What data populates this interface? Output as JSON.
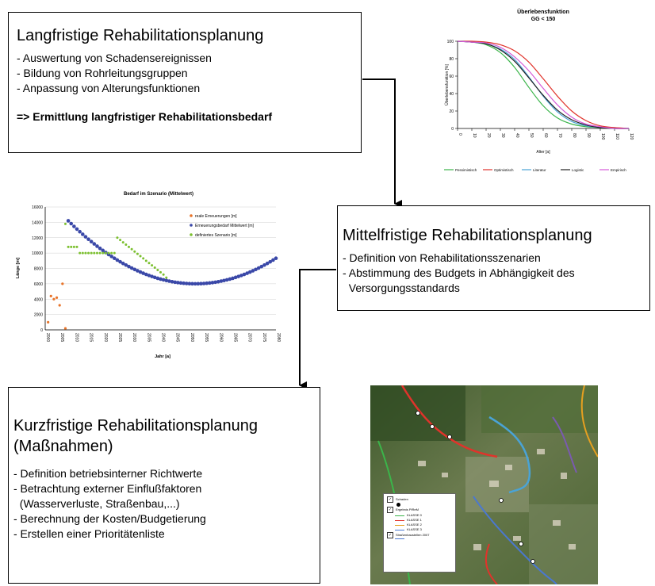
{
  "long_term": {
    "title": "Langfristige Rehabilitationsplanung",
    "items": [
      "- Auswertung von Schadensereignissen",
      "- Bildung von Rohrleitungsgruppen",
      "- Anpassung von Alterungsfunktionen"
    ],
    "conclusion": "=> Ermittlung langfristiger Rehabilitationsbedarf"
  },
  "mid_term": {
    "title": "Mittelfristige Rehabilitationsplanung",
    "items": [
      "- Definition von Rehabilitationsszenarien",
      "- Abstimmung des Budgets in Abhängigkeit des\n  Versorgungsstandards"
    ]
  },
  "short_term": {
    "title": "Kurzfristige Rehabilitationsplanung\n(Maßnahmen)",
    "items": [
      "- Definition betriebsinterner Richtwerte",
      "- Betrachtung externer Einflußfaktoren\n  (Wasserverluste, Straßenbau,...)",
      "- Berechnung der Kosten/Budgetierung",
      "- Erstellen einer Prioritätenliste"
    ]
  },
  "colors": {
    "real": "#e8742a",
    "need": "#3a48a8",
    "scenario": "#7cc030"
  },
  "chart_data": [
    {
      "type": "line",
      "title": "Überlebensfunktion",
      "subtitle": "GG < 150",
      "xlabel": "Alter [a]",
      "ylabel": "Überlebensfunktion [%]",
      "xlim": [
        0,
        120
      ],
      "ylim": [
        0,
        100
      ],
      "x_ticks": [
        0,
        10,
        20,
        30,
        40,
        50,
        60,
        70,
        80,
        90,
        100,
        110,
        120
      ],
      "y_ticks": [
        0,
        20,
        40,
        60,
        80,
        100
      ],
      "legend_position": "bottom",
      "series": [
        {
          "name": "Pessimistisch",
          "color": "#3bb54a",
          "x": [
            0,
            10,
            20,
            30,
            40,
            50,
            60,
            70,
            80,
            90,
            100,
            110,
            120
          ],
          "y": [
            100,
            99,
            96,
            87,
            70,
            47,
            26,
            12,
            5,
            2,
            1,
            0,
            0
          ]
        },
        {
          "name": "Optimistisch",
          "color": "#e0332b",
          "x": [
            0,
            10,
            20,
            30,
            40,
            50,
            60,
            70,
            80,
            90,
            100,
            110,
            120
          ],
          "y": [
            100,
            100,
            99,
            96,
            89,
            76,
            57,
            37,
            20,
            9,
            3,
            1,
            0
          ]
        },
        {
          "name": "Literatur",
          "color": "#4aa3d6",
          "x": [
            0,
            10,
            20,
            30,
            40,
            50,
            60,
            70,
            80,
            90,
            100,
            110,
            120
          ],
          "y": [
            100,
            99,
            97,
            91,
            79,
            59,
            37,
            19,
            8,
            3,
            1,
            0,
            0
          ]
        },
        {
          "name": "Logistic",
          "color": "#222222",
          "x": [
            0,
            10,
            20,
            30,
            40,
            50,
            60,
            70,
            80,
            90,
            100,
            110,
            120
          ],
          "y": [
            100,
            99,
            97,
            90,
            77,
            58,
            38,
            21,
            10,
            4,
            1,
            0,
            0
          ]
        },
        {
          "name": "Empirisch",
          "color": "#d45ad8",
          "x": [
            0,
            10,
            20,
            30,
            40,
            50,
            60,
            70,
            80,
            90,
            100,
            110,
            120
          ],
          "y": [
            100,
            99,
            98,
            93,
            82,
            66,
            46,
            27,
            13,
            5,
            2,
            0,
            0
          ]
        }
      ]
    },
    {
      "type": "scatter",
      "title": "Bedarf im Szenario (Mittelwert)",
      "xlabel": "Jahr [a]",
      "ylabel": "Länge [m]",
      "xlim": [
        2000,
        2080
      ],
      "ylim": [
        0,
        16000
      ],
      "x_ticks": [
        2000,
        2005,
        2010,
        2015,
        2020,
        2025,
        2030,
        2035,
        2040,
        2045,
        2050,
        2055,
        2060,
        2065,
        2070,
        2075,
        2080
      ],
      "y_ticks": [
        0,
        2000,
        4000,
        6000,
        8000,
        10000,
        12000,
        14000,
        16000
      ],
      "legend_position": "top-right",
      "series": [
        {
          "name": "reale Erneuerungen [m]",
          "x": [
            2001,
            2002,
            2003,
            2004,
            2005,
            2006,
            2007
          ],
          "y": [
            1000,
            4400,
            4000,
            4200,
            3200,
            6000,
            200
          ]
        },
        {
          "name": "Erneuerungsbedarf Mittelwert [m]",
          "x_start": 2008,
          "x_end": 2080,
          "y_vertex": 6000,
          "x_vertex": 2052,
          "y_start": 14200
        },
        {
          "name": "definiertes Szenario [m]",
          "x": [
            2007,
            2008,
            2009,
            2010,
            2011,
            2012,
            2013,
            2014,
            2015,
            2016,
            2017,
            2018,
            2019,
            2020,
            2021,
            2022,
            2023,
            2024,
            2025,
            2026,
            2027,
            2028,
            2029,
            2030,
            2031,
            2032,
            2033,
            2034,
            2035,
            2036,
            2037,
            2038,
            2039,
            2040,
            2041,
            2042
          ],
          "y": [
            13800,
            10800,
            10800,
            10800,
            10800,
            10000,
            10000,
            10000,
            10000,
            10000,
            10000,
            10000,
            10000,
            10000,
            10000,
            10000,
            10000,
            10000,
            12000,
            11700,
            11400,
            11100,
            10800,
            10500,
            10200,
            9900,
            9600,
            9300,
            9000,
            8700,
            8400,
            8100,
            7800,
            7500,
            7200,
            6800
          ]
        }
      ]
    }
  ],
  "map": {
    "legend": {
      "schaden": "Schaden",
      "ergebnis": "Ergebnis PiReM",
      "classes": [
        {
          "label": "KLASSE 0",
          "color": "#3bb54a"
        },
        {
          "label": "KLASSE 1",
          "color": "#e0332b"
        },
        {
          "label": "KLASSE 2",
          "color": "#e6a020"
        },
        {
          "label": "KLASSE 3",
          "color": "#4a78d0"
        }
      ],
      "strassen": "Straßenbaustellen 2007"
    }
  }
}
